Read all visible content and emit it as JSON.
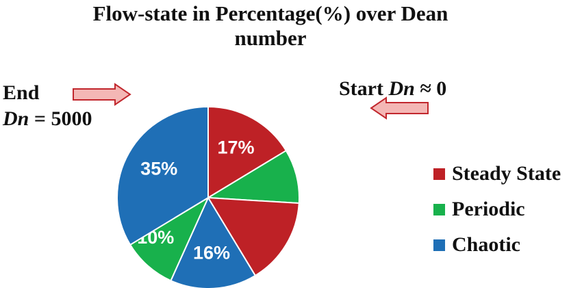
{
  "chart_data": {
    "type": "pie",
    "title": "Flow-state in Percentage(%) over Dean number",
    "title_lines": [
      "Flow-state in Percentage(%) over Dean",
      "number"
    ],
    "slices_clockwise": [
      {
        "category": "Steady State",
        "value": 17,
        "label": "17%"
      },
      {
        "category": "Periodic",
        "value": 10,
        "label": ""
      },
      {
        "category": "Steady State",
        "value": 16,
        "label": ""
      },
      {
        "category": "Chaotic",
        "value": 16,
        "label": "16%"
      },
      {
        "category": "Periodic",
        "value": 10,
        "label": "10%"
      },
      {
        "category": "Chaotic",
        "value": 35,
        "label": "35%"
      }
    ],
    "legend": [
      {
        "name": "Steady State",
        "color": "#be2126"
      },
      {
        "name": "Periodic",
        "color": "#18b14c"
      },
      {
        "name": "Chaotic",
        "color": "#1f6fb6"
      }
    ],
    "legend_position": "right",
    "start_direction": "clockwise from top"
  },
  "annotations": {
    "end_label": "End",
    "end_dn_var": "Dn",
    "end_dn_rest": " = 5000",
    "start_label": "Start ",
    "start_dn_var": "Dn",
    "start_dn_rest": " ≈ 0"
  },
  "colors": {
    "arrow_fill": "#f4b7b5",
    "arrow_stroke": "#c1272d"
  }
}
